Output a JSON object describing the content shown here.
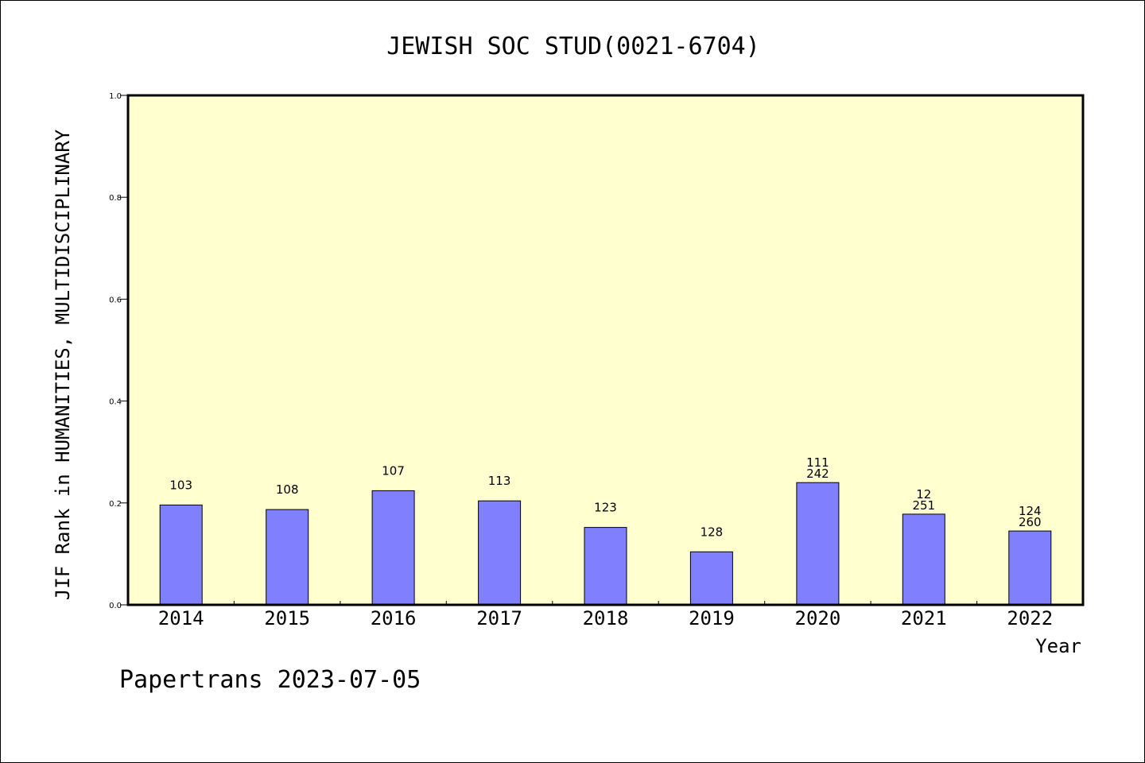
{
  "footer": "Papertrans 2023-07-05",
  "chart_data": {
    "type": "bar",
    "title": "JEWISH SOC STUD(0021-6704)",
    "xlabel": "Year",
    "ylabel": "JIF Rank in HUMANITIES, MULTIDISCIPLINARY",
    "ylim": [
      0.0,
      1.0
    ],
    "yticks": [
      "0.0",
      "0.2",
      "0.4",
      "0.6",
      "0.8",
      "1.0"
    ],
    "categories": [
      "2014",
      "2015",
      "2016",
      "2017",
      "2018",
      "2019",
      "2020",
      "2021",
      "2022"
    ],
    "values": [
      0.196,
      0.187,
      0.224,
      0.204,
      0.152,
      0.104,
      0.24,
      0.178,
      0.145
    ],
    "data_labels": [
      [
        "103"
      ],
      [
        "108"
      ],
      [
        "107"
      ],
      [
        "113"
      ],
      [
        "123"
      ],
      [
        "128"
      ],
      [
        "111",
        "242"
      ],
      [
        "12",
        "251"
      ],
      [
        "124",
        "260"
      ]
    ],
    "colors": {
      "bar": "#8080ff",
      "plot_background": "#ffffd0"
    },
    "grid": false,
    "legend": "none"
  }
}
